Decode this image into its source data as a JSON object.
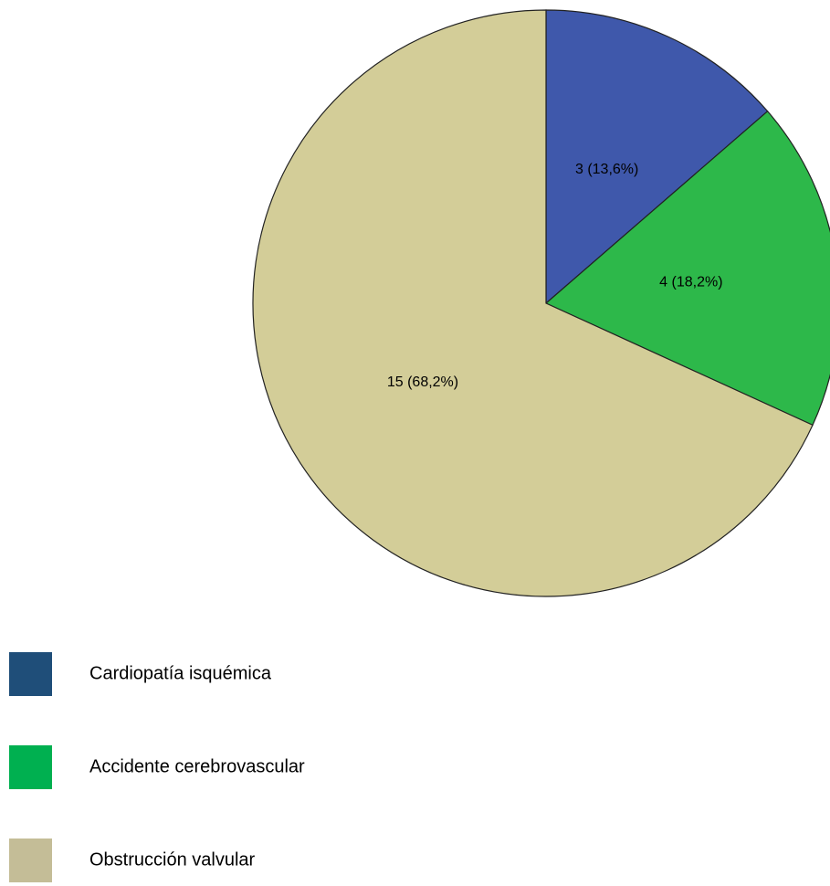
{
  "chart_data": {
    "type": "pie",
    "categories": [
      "Cardiopatía isquémica",
      "Accidente cerebrovascular",
      "Obstrucción valvular"
    ],
    "values": [
      3,
      4,
      15
    ],
    "value_labels": [
      "3 (13,6%)",
      "4 (18,2%)",
      "15 (68,2%)"
    ],
    "colors": [
      "#3f58ab",
      "#2db84a",
      "#d3cd98"
    ],
    "legend_colors": [
      "#1f4e79",
      "#00b050",
      "#c4bd97"
    ]
  }
}
